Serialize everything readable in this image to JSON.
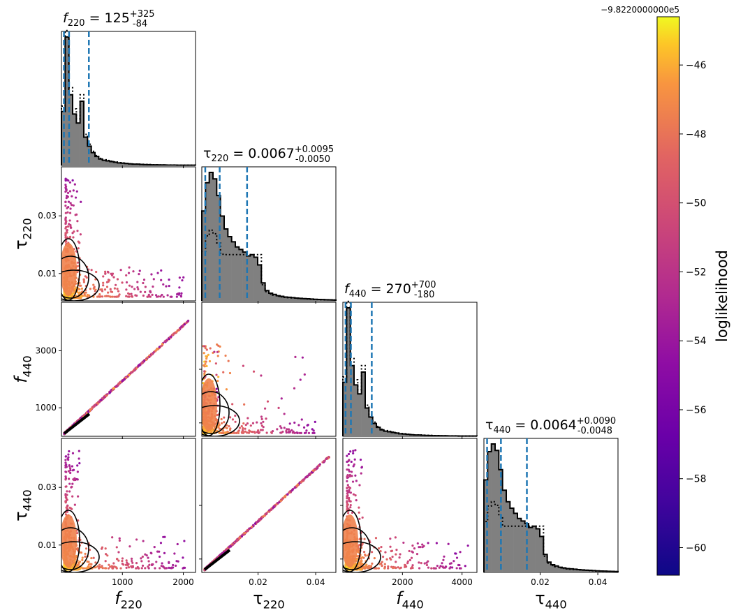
{
  "chart_data": {
    "type": "scatter",
    "parameters": [
      {
        "key": "f220",
        "axis_label": "f220",
        "lim": [
          0,
          2200
        ],
        "ticks": [
          1000,
          2000
        ],
        "tick_labels": [
          "1000",
          "2000"
        ],
        "title": "f220 = 125 +325 -84",
        "median": 125,
        "lo": 41,
        "hi": 450,
        "hist_shape": [
          0.42,
          1.0,
          0.55,
          0.4,
          0.33,
          0.5,
          0.22,
          0.15,
          0.1,
          0.07,
          0.05,
          0.04,
          0.035,
          0.03,
          0.025,
          0.02,
          0.018,
          0.015,
          0.012,
          0.01,
          0.01,
          0.008,
          0.007,
          0.006,
          0.005,
          0.005,
          0.004,
          0.004,
          0.003,
          0.003,
          0.003,
          0.002,
          0.002,
          0.002,
          0.002,
          0.002
        ]
      },
      {
        "key": "tau220",
        "axis_label": "τ220",
        "lim": [
          0.0005,
          0.047
        ],
        "ticks": [
          0.02,
          0.04
        ],
        "tick_labels": [
          "0.02",
          "0.04"
        ],
        "title": "τ220 = 0.0067 +0.0095 -0.0050",
        "median": 0.0067,
        "lo": 0.0017,
        "hi": 0.0162,
        "hist_shape": [
          0.7,
          0.92,
          1.0,
          0.95,
          0.82,
          0.66,
          0.56,
          0.5,
          0.46,
          0.42,
          0.4,
          0.38,
          0.35,
          0.36,
          0.34,
          0.28,
          0.14,
          0.08,
          0.06,
          0.05,
          0.04,
          0.035,
          0.03,
          0.028,
          0.025,
          0.022,
          0.02,
          0.018,
          0.016,
          0.014,
          0.012,
          0.011,
          0.01,
          0.009,
          0.008,
          0.007
        ]
      },
      {
        "key": "f440",
        "axis_label": "f440",
        "lim": [
          0,
          4500
        ],
        "ticks": [
          2000,
          4000
        ],
        "tick_labels": [
          "2000",
          "4000"
        ],
        "title": "f440 = 270 +700 -180",
        "median": 270,
        "lo": 90,
        "hi": 970,
        "hist_shape": [
          0.42,
          1.0,
          0.55,
          0.4,
          0.33,
          0.5,
          0.22,
          0.15,
          0.1,
          0.07,
          0.05,
          0.04,
          0.035,
          0.03,
          0.025,
          0.02,
          0.018,
          0.015,
          0.012,
          0.01,
          0.01,
          0.008,
          0.007,
          0.006,
          0.005,
          0.005,
          0.004,
          0.004,
          0.003,
          0.003,
          0.003,
          0.002,
          0.002,
          0.002,
          0.002,
          0.002
        ]
      },
      {
        "key": "tau440",
        "axis_label": "τ440",
        "lim": [
          0.0005,
          0.047
        ],
        "ticks": [
          0.02,
          0.04
        ],
        "tick_labels": [
          "0.02",
          "0.04"
        ],
        "title": "τ440 = 0.0064 +0.0090 -0.0048",
        "median": 0.0064,
        "lo": 0.0016,
        "hi": 0.0154,
        "hist_shape": [
          0.72,
          0.94,
          1.0,
          0.95,
          0.8,
          0.64,
          0.55,
          0.5,
          0.46,
          0.42,
          0.4,
          0.38,
          0.35,
          0.36,
          0.34,
          0.28,
          0.14,
          0.08,
          0.06,
          0.05,
          0.04,
          0.035,
          0.03,
          0.028,
          0.025,
          0.022,
          0.02,
          0.018,
          0.016,
          0.014,
          0.012,
          0.011,
          0.01,
          0.009,
          0.008,
          0.007
        ]
      }
    ],
    "offdiag_ticks": {
      "tau220_on_f220": {
        "ticks": [
          0.01,
          0.03
        ],
        "labels": [
          "0.01",
          "0.03"
        ]
      },
      "f440_on_f220": {
        "ticks": [
          1000,
          3000
        ],
        "labels": [
          "1000",
          "3000"
        ]
      },
      "tau440_on_f220": {
        "ticks": [
          0.01,
          0.03
        ],
        "labels": [
          "0.01",
          "0.03"
        ]
      }
    },
    "colorbar": {
      "label": "loglikelihood",
      "offset_text": "−9.8220000000e5",
      "range": [
        -60.8,
        -44.6
      ],
      "ticks": [
        -60,
        -58,
        -56,
        -54,
        -52,
        -50,
        -48,
        -46
      ],
      "tick_labels": [
        "−60",
        "−58",
        "−56",
        "−54",
        "−52",
        "−50",
        "−48",
        "−46"
      ],
      "colormap": "plasma"
    },
    "colors": {
      "hist_fill": "#808080",
      "hist_edge": "#000000",
      "median_line": "#1f77b4",
      "contour": "#000000"
    }
  }
}
